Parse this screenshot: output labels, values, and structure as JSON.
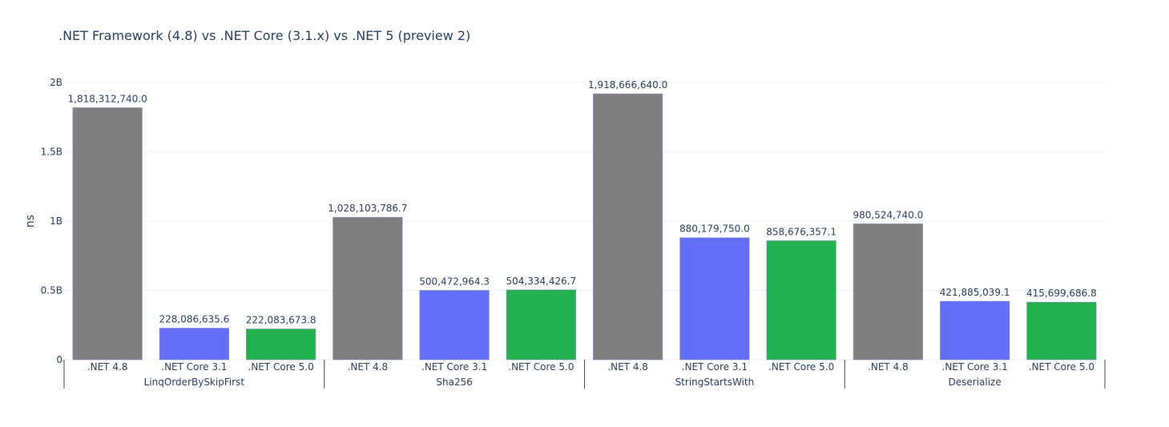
{
  "chart_data": {
    "type": "bar",
    "title": ".NET Framework (4.8) vs .NET Core (3.1.x) vs .NET 5 (preview 2)",
    "xlabel": "",
    "ylabel": "ns",
    "ylim": [
      0,
      2000000000
    ],
    "y_ticks": [
      {
        "value": 0,
        "label": "0"
      },
      {
        "value": 500000000,
        "label": "0.5B"
      },
      {
        "value": 1000000000,
        "label": "1B"
      },
      {
        "value": 1500000000,
        "label": "1.5B"
      },
      {
        "value": 2000000000,
        "label": "2B"
      }
    ],
    "grid": true,
    "groups": [
      "LinqOrderBySkipFirst",
      "Sha256",
      "StringStartsWith",
      "Deserialize"
    ],
    "categories": [
      ".NET 4.8",
      ".NET Core 3.1",
      ".NET Core 5.0"
    ],
    "colors": {
      ".NET 4.8": "#7f7f7f",
      ".NET Core 3.1": "#636efa",
      ".NET Core 5.0": "#23b14d"
    },
    "values": [
      [
        1818312740.0,
        228086635.6,
        222083673.8
      ],
      [
        1028103786.7,
        500472964.3,
        504334426.7
      ],
      [
        1918666640.0,
        880179750.0,
        858676357.1
      ],
      [
        980524740.0,
        421885039.1,
        415699686.8
      ]
    ],
    "value_labels": [
      [
        "1,818,312,740.0",
        "228,086,635.6",
        "222,083,673.8"
      ],
      [
        "1,028,103,786.7",
        "500,472,964.3",
        "504,334,426.7"
      ],
      [
        "1,918,666,640.0",
        "880,179,750.0",
        "858,676,357.1"
      ],
      [
        "980,524,740.0",
        "421,885,039.1",
        "415,699,686.8"
      ]
    ]
  }
}
